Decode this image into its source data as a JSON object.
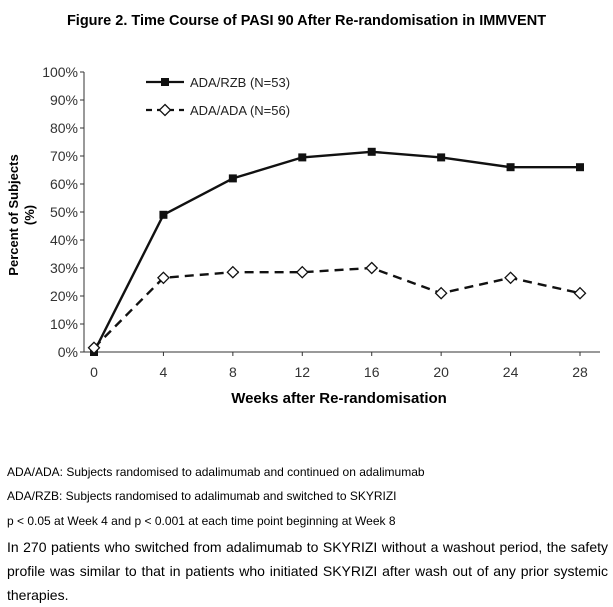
{
  "title": "Figure 2. Time Course of PASI 90 After Re-randomisation in IMMVENT",
  "chart_data": {
    "type": "line",
    "title": "Figure 2. Time Course of PASI 90 After Re-randomisation in IMMVENT",
    "xlabel": "Weeks after Re-randomisation",
    "ylabel": "Percent of Subjects (%)",
    "ylabel_lines": [
      "Percent of Subjects",
      "(%)"
    ],
    "x": [
      0,
      4,
      8,
      12,
      16,
      20,
      24,
      28
    ],
    "x_ticks": [
      "0",
      "4",
      "8",
      "12",
      "16",
      "20",
      "24",
      "28"
    ],
    "y_ticks": [
      "0%",
      "10%",
      "20%",
      "30%",
      "40%",
      "50%",
      "60%",
      "70%",
      "80%",
      "90%",
      "100%"
    ],
    "ylim": [
      0,
      100
    ],
    "grid": false,
    "legend_position": "top-left",
    "series": [
      {
        "name": "ADA/RZB (N=53)",
        "values": [
          0,
          49,
          62,
          69.5,
          71.5,
          69.5,
          66,
          66
        ],
        "line": "solid",
        "marker": "filled-square"
      },
      {
        "name": "ADA/ADA (N=56)",
        "values": [
          1.5,
          26.5,
          28.5,
          28.5,
          30,
          21,
          26.5,
          21
        ],
        "line": "dashed",
        "marker": "open-diamond"
      }
    ]
  },
  "footnotes": [
    "ADA/ADA: Subjects randomised to adalimumab and continued on adalimumab",
    "ADA/RZB: Subjects randomised to adalimumab and switched to SKYRIZI",
    "p < 0.05 at Week 4 and p < 0.001 at each time point beginning at Week 8"
  ],
  "paragraph": "In 270 patients who switched from adalimumab to SKYRIZI without a washout period, the safety profile was similar to that in patients who initiated SKYRIZI after wash out of any prior systemic therapies."
}
